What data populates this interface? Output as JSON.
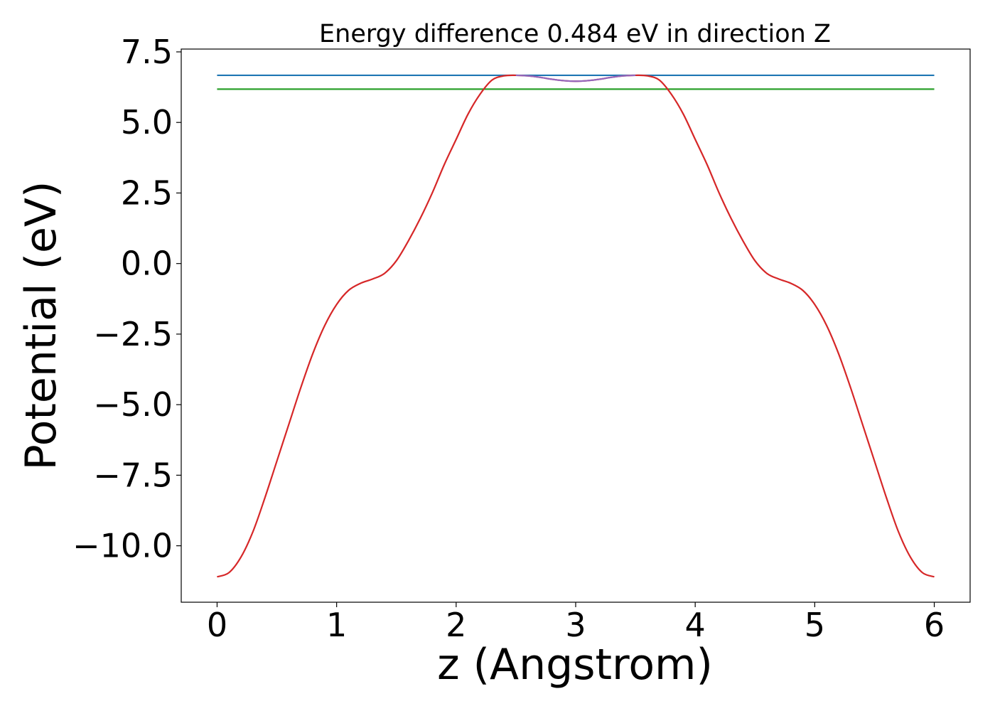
{
  "chart_data": {
    "type": "line",
    "title": "Energy difference 0.484 eV in direction Z",
    "xlabel": "z (Angstrom)",
    "ylabel": "Potential (eV)",
    "xlim": [
      -0.3,
      6.3
    ],
    "ylim": [
      -12.0,
      7.6
    ],
    "x_ticks": [
      0,
      1,
      2,
      3,
      4,
      5,
      6
    ],
    "x_tick_labels": [
      "0",
      "1",
      "2",
      "3",
      "4",
      "5",
      "6"
    ],
    "y_ticks": [
      -10.0,
      -7.5,
      -5.0,
      -2.5,
      0.0,
      2.5,
      5.0,
      7.5
    ],
    "y_tick_labels": [
      "−10.0",
      "−7.5",
      "−5.0",
      "−2.5",
      "0.0",
      "2.5",
      "5.0",
      "7.5"
    ],
    "grid": false,
    "legend": false,
    "series": [
      {
        "color": "#1f77b4",
        "x": [
          0,
          6
        ],
        "y": [
          6.67,
          6.67
        ]
      },
      {
        "color": "#2ca02c",
        "x": [
          0,
          6
        ],
        "y": [
          6.18,
          6.18
        ]
      },
      {
        "color": "#d62728",
        "x": [
          0,
          0.1,
          0.2,
          0.3,
          0.4,
          0.5,
          0.6,
          0.7,
          0.8,
          0.9,
          1.0,
          1.1,
          1.2,
          1.3,
          1.4,
          1.5,
          1.6,
          1.7,
          1.8,
          1.9,
          2.0,
          2.1,
          2.2,
          2.3,
          2.4,
          2.5,
          2.6,
          2.7,
          2.8,
          2.9,
          3.0,
          3.1,
          3.2,
          3.3,
          3.4,
          3.5,
          3.6,
          3.7,
          3.8,
          3.9,
          4.0,
          4.1,
          4.2,
          4.3,
          4.4,
          4.5,
          4.6,
          4.7,
          4.8,
          4.9,
          5.0,
          5.1,
          5.2,
          5.3,
          5.4,
          5.5,
          5.6,
          5.7,
          5.8,
          5.9,
          6.0
        ],
        "y": [
          -11.1,
          -10.95,
          -10.4,
          -9.5,
          -8.3,
          -7.0,
          -5.7,
          -4.4,
          -3.2,
          -2.2,
          -1.45,
          -0.95,
          -0.7,
          -0.55,
          -0.35,
          0.1,
          0.8,
          1.6,
          2.5,
          3.5,
          4.4,
          5.3,
          6.0,
          6.5,
          6.65,
          6.67,
          6.65,
          6.6,
          6.53,
          6.48,
          6.46,
          6.48,
          6.53,
          6.6,
          6.65,
          6.67,
          6.65,
          6.5,
          6.0,
          5.3,
          4.4,
          3.5,
          2.5,
          1.6,
          0.8,
          0.1,
          -0.35,
          -0.55,
          -0.7,
          -0.95,
          -1.45,
          -2.2,
          -3.2,
          -4.4,
          -5.7,
          -7.0,
          -8.3,
          -9.5,
          -10.4,
          -10.95,
          -11.1
        ]
      },
      {
        "color": "#9467bd",
        "x": [
          2.5,
          2.6,
          2.7,
          2.8,
          2.9,
          3.0,
          3.1,
          3.2,
          3.3,
          3.4,
          3.5
        ],
        "y": [
          6.67,
          6.65,
          6.6,
          6.53,
          6.48,
          6.46,
          6.48,
          6.53,
          6.6,
          6.65,
          6.67
        ]
      }
    ]
  }
}
